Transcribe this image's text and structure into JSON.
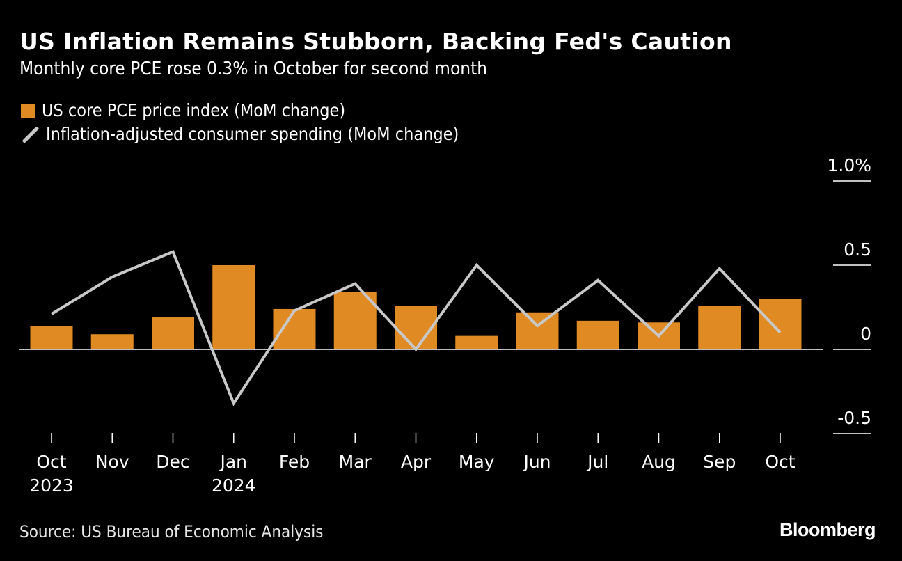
{
  "chart_data": {
    "type": "bar+line",
    "title": "US Inflation Remains Stubborn, Backing Fed's Caution",
    "subtitle": "Monthly core PCE rose 0.3% in October for second month",
    "categories": [
      "Oct",
      "Nov",
      "Dec",
      "Jan",
      "Feb",
      "Mar",
      "Apr",
      "May",
      "Jun",
      "Jul",
      "Aug",
      "Sep",
      "Oct"
    ],
    "year_labels": {
      "0": "2023",
      "3": "2024"
    },
    "series": [
      {
        "name": "US core PCE price index (MoM change)",
        "type": "bar",
        "color": "#e08a24",
        "values": [
          0.14,
          0.09,
          0.19,
          0.5,
          0.24,
          0.34,
          0.26,
          0.08,
          0.22,
          0.17,
          0.16,
          0.26,
          0.3
        ]
      },
      {
        "name": "Inflation-adjusted consumer spending (MoM change)",
        "type": "line",
        "color": "#c8c8c8",
        "values": [
          0.21,
          0.43,
          0.58,
          -0.32,
          0.23,
          0.39,
          0.0,
          0.5,
          0.14,
          0.41,
          0.08,
          0.48,
          0.1
        ]
      }
    ],
    "yticks": [
      1.0,
      0.5,
      0,
      -0.5
    ],
    "ytick_labels": [
      "1.0%",
      "0.5",
      "0",
      "-0.5"
    ],
    "ylim": [
      -0.55,
      1.0
    ],
    "y_axis_position": "right",
    "legend_position": "top-left",
    "grid": false
  },
  "source": "Source: US Bureau of Economic Analysis",
  "logo": "Bloomberg"
}
